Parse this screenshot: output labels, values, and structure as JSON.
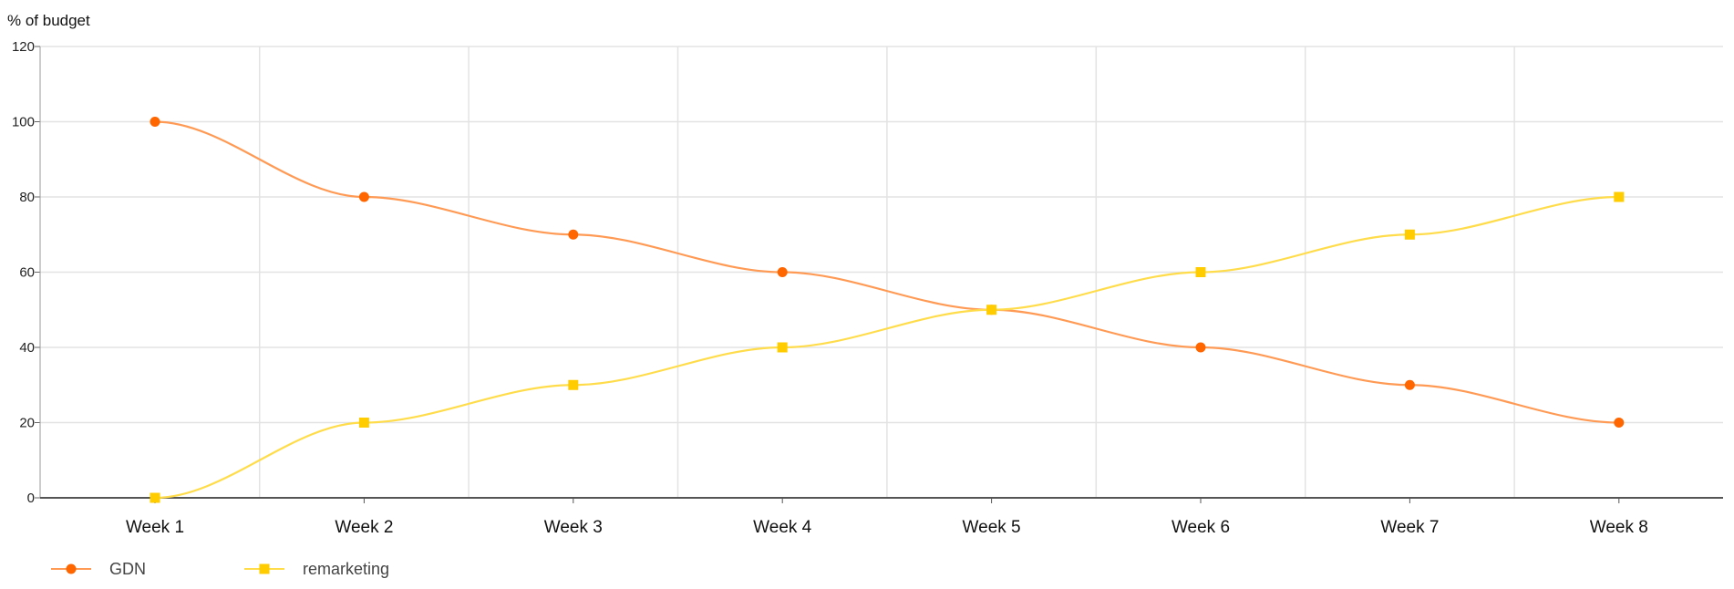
{
  "chart_data": {
    "type": "line",
    "title": "",
    "xlabel": "",
    "ylabel": "% of budget",
    "categories": [
      "Week 1",
      "Week 2",
      "Week 3",
      "Week 4",
      "Week 5",
      "Week 6",
      "Week 7",
      "Week 8"
    ],
    "ylim": [
      0,
      120
    ],
    "yticks": [
      0,
      20,
      40,
      60,
      80,
      100,
      120
    ],
    "grid": true,
    "smooth": true,
    "legend_position": "bottom-left",
    "series": [
      {
        "name": "GDN",
        "values": [
          100,
          80,
          70,
          60,
          50,
          40,
          30,
          20
        ],
        "color": "#ff6600",
        "line_color": "#ff9a55",
        "marker": "circle"
      },
      {
        "name": "remarketing",
        "values": [
          0,
          20,
          30,
          40,
          50,
          60,
          70,
          80
        ],
        "color": "#ffcc00",
        "line_color": "#ffdc4a",
        "marker": "square"
      }
    ]
  }
}
